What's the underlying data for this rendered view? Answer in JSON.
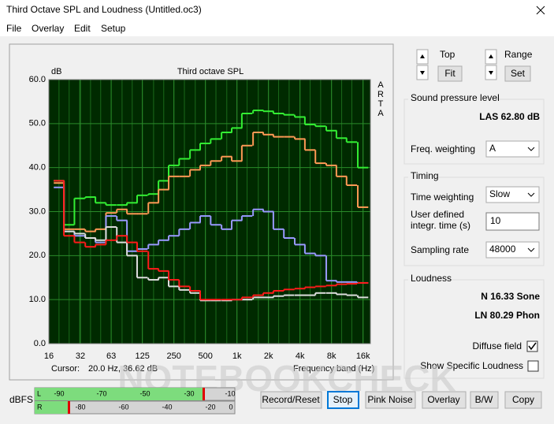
{
  "window": {
    "title": "Third Octave SPL and Loudness (Untitled.oc3)"
  },
  "menu": [
    "File",
    "Overlay",
    "Edit",
    "Setup"
  ],
  "chart_data": {
    "type": "line",
    "drawstyle": "steps",
    "title": "Third octave SPL",
    "y_unit": "dB",
    "side_label": "ARTA",
    "cursor_label": "Cursor:",
    "cursor": "20.0 Hz, 36.62 dB",
    "x_label": "Frequency band (Hz)",
    "xscale": "log",
    "grid": true,
    "x": [
      20,
      25,
      31.5,
      40,
      50,
      63,
      80,
      100,
      125,
      160,
      200,
      250,
      315,
      400,
      500,
      630,
      800,
      1000,
      1250,
      1600,
      2000,
      2500,
      3150,
      4000,
      5000,
      6300,
      8000,
      10000,
      12500,
      16000
    ],
    "xlim": [
      16,
      18800
    ],
    "xticks": [
      16,
      32,
      63,
      125,
      250,
      500,
      {
        "value": 1000,
        "label": "1k"
      },
      {
        "value": 2000,
        "label": "2k"
      },
      {
        "value": 4000,
        "label": "4k"
      },
      {
        "value": 8000,
        "label": "8k"
      },
      {
        "value": 16000,
        "label": "16k"
      }
    ],
    "ylim": [
      0,
      60
    ],
    "yticks": [
      {
        "value": 0,
        "label": "0.0"
      },
      {
        "value": 10,
        "label": "10.0"
      },
      {
        "value": 20,
        "label": "20.0"
      },
      {
        "value": 30,
        "label": "30.0"
      },
      {
        "value": 40,
        "label": "40.0"
      },
      {
        "value": 50,
        "label": "50.0"
      },
      {
        "value": 60,
        "label": "60.0"
      }
    ],
    "series": [
      {
        "color": "#33ee33",
        "values": [
          37,
          27,
          33,
          33.3,
          32,
          31.5,
          31.5,
          32,
          33.7,
          34,
          37,
          40.5,
          42,
          44,
          45.5,
          46.5,
          48,
          49,
          52.3,
          53,
          52.8,
          52.3,
          52,
          51.5,
          49.8,
          49.4,
          48.4,
          46.7,
          45.8,
          40
        ]
      },
      {
        "color": "#ff9955",
        "values": [
          36.5,
          26,
          26,
          25.5,
          26,
          29.7,
          30.5,
          29.5,
          29.5,
          32,
          35,
          38,
          38,
          39.5,
          40.5,
          41.5,
          42.5,
          41.5,
          45,
          48,
          47.5,
          47,
          47,
          46.5,
          44,
          41,
          40.5,
          38,
          36,
          31
        ]
      },
      {
        "color": "#9999ff",
        "values": [
          35.5,
          25.5,
          24.5,
          24,
          23,
          29,
          28,
          21,
          21.5,
          22.5,
          23.5,
          24.5,
          26,
          27.5,
          29,
          27,
          26,
          28,
          29,
          30.5,
          30,
          26,
          24,
          22.5,
          20.5,
          20,
          14.3,
          14,
          14,
          13.8
        ]
      },
      {
        "color": "#dddddd",
        "values": [
          37,
          25.5,
          25,
          24,
          23.5,
          26.5,
          23,
          20,
          15,
          14.5,
          15,
          13,
          12.2,
          11.5,
          9.8,
          9.8,
          9.8,
          10,
          10,
          10.5,
          10.5,
          10.8,
          11,
          11,
          11,
          11.5,
          11.5,
          11.2,
          11,
          10.5
        ]
      },
      {
        "color": "#ff1a1a",
        "values": [
          37,
          24.5,
          23,
          22,
          22.5,
          23.5,
          24.5,
          23,
          21,
          17,
          16.5,
          14.5,
          13,
          12,
          10,
          10,
          10,
          10,
          10.5,
          11,
          11.5,
          12,
          12.3,
          12.5,
          12.8,
          13,
          13.2,
          13.5,
          13.6,
          13.8
        ]
      }
    ]
  },
  "controls": {
    "top_label": "Top",
    "fit": "Fit",
    "range_label": "Range",
    "set": "Set"
  },
  "spl": {
    "group": "Sound pressure level",
    "reading": "LAS 62.80 dB",
    "weighting_label": "Freq. weighting",
    "weighting": "A"
  },
  "timing": {
    "group": "Timing",
    "time_weighting_label": "Time weighting",
    "time_weighting": "Slow",
    "integr_label": [
      "User defined",
      "integr. time (s)"
    ],
    "integr_time": "10",
    "sampling_label": "Sampling rate",
    "sampling": "48000"
  },
  "loudness": {
    "group": "Loudness",
    "n": "N 16.33 Sone",
    "ln": "LN 80.29 Phon",
    "diffuse": "Diffuse field",
    "specific": "Show Specific Loudness"
  },
  "meter": {
    "label": "dBFS",
    "l": "L",
    "r": "R",
    "l_scale": [
      "-90",
      "-70",
      "-50",
      "-30",
      "-10"
    ],
    "r_scale": [
      "-80",
      "-60",
      "-40",
      "-20",
      "0"
    ]
  },
  "buttons": [
    "Record/Reset",
    "Stop",
    "Pink Noise",
    "Overlay",
    "B/W",
    "Copy"
  ],
  "watermark": "NOTEBOOKCHECK"
}
